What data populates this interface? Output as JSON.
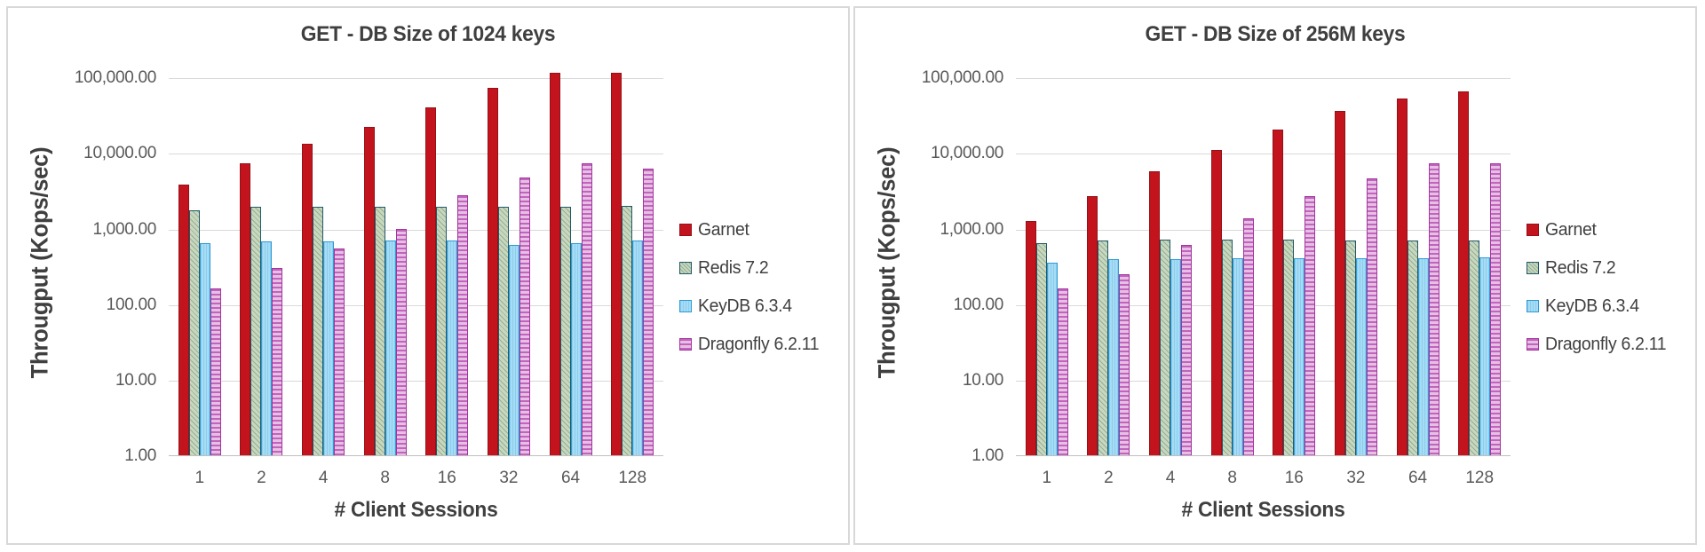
{
  "page": {
    "background": "#FFFFFF",
    "card_border": "#D8D8D8",
    "gridline_color": "#D9D9D9",
    "axis_line_color": "#BFBFBF",
    "title_color": "#3F3F3F",
    "tick_color": "#595959"
  },
  "chart_data": [
    {
      "type": "bar",
      "title": "GET - DB Size of 1024 keys",
      "xlabel": "# Client Sessions",
      "ylabel": "Througput (Kops/sec)",
      "y_scale": "log10",
      "ylim": [
        1,
        177828
      ],
      "grid": true,
      "legend_position": "right",
      "y_ticks": [
        {
          "value": 1,
          "label": "1.00"
        },
        {
          "value": 10,
          "label": "10.00"
        },
        {
          "value": 100,
          "label": "100.00"
        },
        {
          "value": 1000,
          "label": "1,000.00"
        },
        {
          "value": 10000,
          "label": "10,000.00"
        },
        {
          "value": 100000,
          "label": "100,000.00"
        }
      ],
      "categories": [
        "1",
        "2",
        "4",
        "8",
        "16",
        "32",
        "64",
        "128"
      ],
      "series": [
        {
          "name": "Garnet",
          "pattern": "solid",
          "fill": "#C3141D",
          "pattern_color": "#C3141D",
          "border": "#951016",
          "values": [
            3800,
            7300,
            13300,
            22000,
            40000,
            72000,
            115000,
            116000
          ]
        },
        {
          "name": "Redis 7.2",
          "pattern": "diagonal",
          "fill": "#C9D8BC",
          "pattern_color": "#93AF9B",
          "border": "#215968",
          "values": [
            1750,
            1950,
            1950,
            1950,
            1950,
            1950,
            1950,
            2000
          ]
        },
        {
          "name": "KeyDB 6.3.4",
          "pattern": "dots",
          "fill": "#A6DCF5",
          "pattern_color": "#8CCDEC",
          "border": "#2E9BD6",
          "values": [
            650,
            680,
            680,
            690,
            690,
            600,
            640,
            690
          ]
        },
        {
          "name": "Dragonfly 6.2.11",
          "pattern": "horizontal",
          "fill": "#E6C0E4",
          "pattern_color": "#C263BD",
          "border": "#A4359F",
          "values": [
            160,
            300,
            550,
            1000,
            2800,
            4800,
            7400,
            6200
          ]
        }
      ]
    },
    {
      "type": "bar",
      "title": "GET - DB Size of 256M keys",
      "xlabel": "# Client Sessions",
      "ylabel": "Througput (Kops/sec)",
      "y_scale": "log10",
      "ylim": [
        1,
        177828
      ],
      "grid": true,
      "legend_position": "right",
      "y_ticks": [
        {
          "value": 1,
          "label": "1.00"
        },
        {
          "value": 10,
          "label": "10.00"
        },
        {
          "value": 100,
          "label": "100.00"
        },
        {
          "value": 1000,
          "label": "1,000.00"
        },
        {
          "value": 10000,
          "label": "10,000.00"
        },
        {
          "value": 100000,
          "label": "100,000.00"
        }
      ],
      "categories": [
        "1",
        "2",
        "4",
        "8",
        "16",
        "32",
        "64",
        "128"
      ],
      "series": [
        {
          "name": "Garnet",
          "pattern": "solid",
          "fill": "#C3141D",
          "pattern_color": "#C3141D",
          "border": "#951016",
          "values": [
            1250,
            2700,
            5800,
            11000,
            20500,
            36000,
            52000,
            65000
          ]
        },
        {
          "name": "Redis 7.2",
          "pattern": "diagonal",
          "fill": "#C9D8BC",
          "pattern_color": "#93AF9B",
          "border": "#215968",
          "values": [
            650,
            700,
            710,
            710,
            710,
            700,
            700,
            690
          ]
        },
        {
          "name": "KeyDB 6.3.4",
          "pattern": "dots",
          "fill": "#A6DCF5",
          "pattern_color": "#8CCDEC",
          "border": "#2E9BD6",
          "values": [
            350,
            390,
            390,
            400,
            410,
            400,
            400,
            420
          ]
        },
        {
          "name": "Dragonfly 6.2.11",
          "pattern": "horizontal",
          "fill": "#E6C0E4",
          "pattern_color": "#C263BD",
          "border": "#A4359F",
          "values": [
            160,
            250,
            600,
            1350,
            2700,
            4600,
            7400,
            7400
          ]
        }
      ]
    }
  ]
}
